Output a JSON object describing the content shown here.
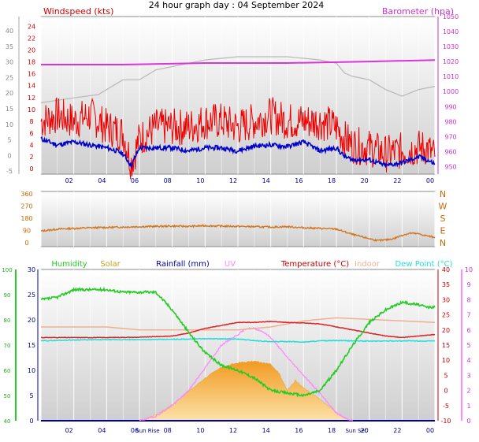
{
  "title": "24 hour graph day : 04 September 2024",
  "colors": {
    "wind": "#ee0000",
    "gust_line": "#0000cc",
    "baro": "#dd33dd",
    "gray_line": "#b8b8b8",
    "direction": "#d2761e",
    "humidity": "#22cc22",
    "solar": "#f5b040",
    "rain": "#0000aa",
    "uv": "#ff88ff",
    "temperature": "#dd2222",
    "indoor": "#f0b090",
    "dewpoint": "#22dddd",
    "axis_left": "#cc0000",
    "axis_right": "#cc33cc"
  },
  "chart_data": [
    {
      "type": "line",
      "name": "wind",
      "left_title": "Windspeed (kts)",
      "right_title": "Barometer (hpa)",
      "x_ticks": [
        "02",
        "04",
        "06",
        "08",
        "10",
        "12",
        "14",
        "16",
        "18",
        "20",
        "22",
        "00"
      ],
      "left_ticks_outer": [
        "40",
        "35",
        "30",
        "25",
        "20",
        "15",
        "10",
        "5",
        "0",
        "-5"
      ],
      "left_ticks_inner": [
        "24",
        "22",
        "20",
        "18",
        "16",
        "14",
        "12",
        "10",
        "8",
        "6",
        "4",
        "2",
        "0"
      ],
      "right_ticks": [
        "1050",
        "1040",
        "1030",
        "1020",
        "1010",
        "1000",
        "990",
        "980",
        "970",
        "960",
        "950"
      ],
      "ylim_kts": [
        0,
        25
      ],
      "ylim_hpa": [
        945,
        1050
      ],
      "wind_avg": {
        "x": [
          0,
          1,
          2,
          3,
          4,
          4.6,
          5,
          5.5,
          6,
          7,
          8,
          9,
          10,
          11,
          12,
          13,
          14,
          15,
          16,
          17,
          18,
          18.5,
          19,
          20,
          21,
          22,
          23,
          23.5,
          24
        ],
        "y": [
          5,
          4,
          4.5,
          4,
          3.5,
          3,
          2.5,
          0.5,
          3.5,
          3.5,
          3.5,
          3,
          3.5,
          3.5,
          3,
          3.8,
          4,
          3.7,
          4.5,
          3,
          3.5,
          2,
          1.5,
          1.5,
          0.5,
          1,
          2,
          1.5,
          0.8
        ]
      },
      "wind_gust": {
        "x": [
          0,
          1,
          2,
          3,
          4,
          5,
          5.5,
          6,
          7,
          8,
          9,
          10,
          11,
          12,
          13,
          14,
          15,
          16,
          17,
          18,
          18.5,
          19,
          20,
          21,
          22,
          23,
          23.5,
          24
        ],
        "y": [
          8,
          9,
          8,
          9,
          7,
          6,
          1,
          5,
          7,
          7,
          7,
          8,
          8,
          7,
          8,
          9,
          8,
          8,
          8,
          7,
          5,
          4,
          3.5,
          2.5,
          3,
          3.5,
          3.5,
          2
        ]
      },
      "baro": {
        "x": [
          0,
          5,
          10,
          15,
          20,
          24
        ],
        "y": [
          1018,
          1018,
          1019,
          1019,
          1020,
          1021
        ]
      },
      "gray": {
        "x": [
          0,
          2,
          3.5,
          4,
          5,
          6,
          7,
          8,
          9,
          10,
          11,
          12,
          13,
          14,
          15,
          16,
          17,
          18,
          18.5,
          19,
          20,
          21,
          22,
          23,
          24
        ],
        "y": [
          15,
          16.5,
          17.5,
          19,
          22,
          22,
          25,
          26,
          27,
          28,
          28.5,
          29,
          29,
          29,
          29,
          28.5,
          28,
          27,
          24,
          23,
          22,
          19,
          17,
          19,
          20
        ]
      }
    },
    {
      "type": "line",
      "name": "direction",
      "left_ticks": [
        "360",
        "270",
        "180",
        "90",
        "0"
      ],
      "right_ticks": [
        "N",
        "W",
        "S",
        "E",
        "N"
      ],
      "ylim": [
        0,
        360
      ],
      "x": [
        0,
        1,
        2,
        3,
        4,
        5,
        6,
        7,
        8,
        9,
        10,
        11,
        12,
        13,
        14,
        15,
        16,
        17,
        18,
        18.5,
        19,
        19.5,
        20,
        20.5,
        21,
        21.5,
        22,
        22.5,
        23,
        23.5,
        24
      ],
      "y": [
        85,
        100,
        105,
        110,
        112,
        115,
        118,
        120,
        122,
        120,
        125,
        122,
        120,
        118,
        115,
        118,
        110,
        105,
        100,
        80,
        60,
        45,
        30,
        15,
        20,
        30,
        55,
        70,
        65,
        50,
        40
      ]
    },
    {
      "type": "line",
      "name": "climate",
      "legend": [
        "Humidity",
        "Solar",
        "Rainfall (mm)",
        "UV",
        "Temperature (°C)",
        "Indoor",
        "Dew Point (°C)"
      ],
      "x_ticks": [
        "02",
        "04",
        "06",
        "08",
        "10",
        "12",
        "14",
        "16",
        "18",
        "Sun Set",
        "20",
        "22",
        "00"
      ],
      "sunrise_marker": "Sun Rise",
      "sunset_marker": "Sun Set",
      "hum_ticks": [
        "100",
        "90",
        "80",
        "70",
        "60",
        "50",
        "40"
      ],
      "rain_ticks": [
        "30",
        "25",
        "20",
        "15",
        "10",
        "5",
        "0"
      ],
      "temp_ticks": [
        "40",
        "35",
        "30",
        "25",
        "20",
        "15",
        "10",
        "5",
        "0",
        "-5",
        "-10"
      ],
      "uv_ticks": [
        "10",
        "9",
        "8",
        "7",
        "6",
        "5",
        "4",
        "3",
        "2",
        "1",
        "0"
      ],
      "humidity": {
        "x": [
          0,
          1,
          2,
          3,
          4,
          5,
          6,
          7,
          8,
          9,
          10,
          11,
          12,
          13,
          14,
          15,
          16,
          17,
          18,
          19,
          20,
          21,
          22,
          23,
          23.5,
          24
        ],
        "y": [
          88,
          89,
          92,
          92,
          92,
          91,
          91,
          91,
          84,
          75,
          67,
          62,
          60,
          57,
          52,
          51,
          50,
          52,
          60,
          70,
          79,
          84,
          87,
          86,
          85,
          85
        ]
      },
      "temperature": {
        "x": [
          0,
          2,
          4,
          6,
          8,
          9,
          10,
          11,
          12,
          13,
          14,
          15,
          16,
          17,
          18,
          19,
          20,
          21,
          22,
          23,
          24
        ],
        "y": [
          17.5,
          17.5,
          17.5,
          17.6,
          18,
          19,
          20.5,
          21.5,
          22.5,
          22.5,
          22.8,
          22.5,
          22.3,
          22,
          21,
          20,
          19,
          18,
          17.5,
          18,
          18.5
        ]
      },
      "dewpoint": {
        "x": [
          0,
          2,
          4,
          6,
          8,
          10,
          12,
          13,
          14,
          15,
          16,
          17,
          18,
          20,
          22,
          24
        ],
        "y": [
          16.4,
          16.7,
          16.8,
          16.8,
          16.9,
          17.1,
          17,
          16.5,
          16.1,
          16.2,
          16,
          16.4,
          16.5,
          16.3,
          16.4,
          16.3
        ]
      },
      "indoor": {
        "x": [
          0,
          2,
          4,
          6,
          8,
          10,
          12,
          14,
          16,
          18,
          20,
          22,
          24
        ],
        "y": [
          21,
          21,
          21,
          20,
          20,
          20,
          20,
          21,
          23,
          24,
          23.5,
          23,
          22.5
        ]
      },
      "solar": {
        "x": [
          6,
          7,
          8,
          9,
          10,
          11,
          12,
          13,
          14,
          14.5,
          15,
          15.5,
          16,
          17,
          18,
          18.5,
          19
        ],
        "y": [
          0,
          1.2,
          3.2,
          5.8,
          8.5,
          10.6,
          11.5,
          11.8,
          11.2,
          9.5,
          6,
          8,
          6.5,
          4.2,
          1.6,
          0.5,
          0
        ]
      },
      "uv": {
        "x": [
          6,
          7,
          8,
          9,
          10,
          11,
          12,
          12.5,
          13,
          13.5,
          14,
          15,
          16,
          17,
          18,
          18.5,
          19
        ],
        "y": [
          0,
          0.3,
          1,
          2,
          3.5,
          5,
          5.7,
          6.1,
          6.1,
          5.9,
          5.5,
          4.2,
          3,
          1.8,
          0.5,
          0.2,
          0
        ]
      },
      "rainfall": {
        "x": [
          0,
          24
        ],
        "y": [
          0,
          0
        ]
      }
    }
  ]
}
